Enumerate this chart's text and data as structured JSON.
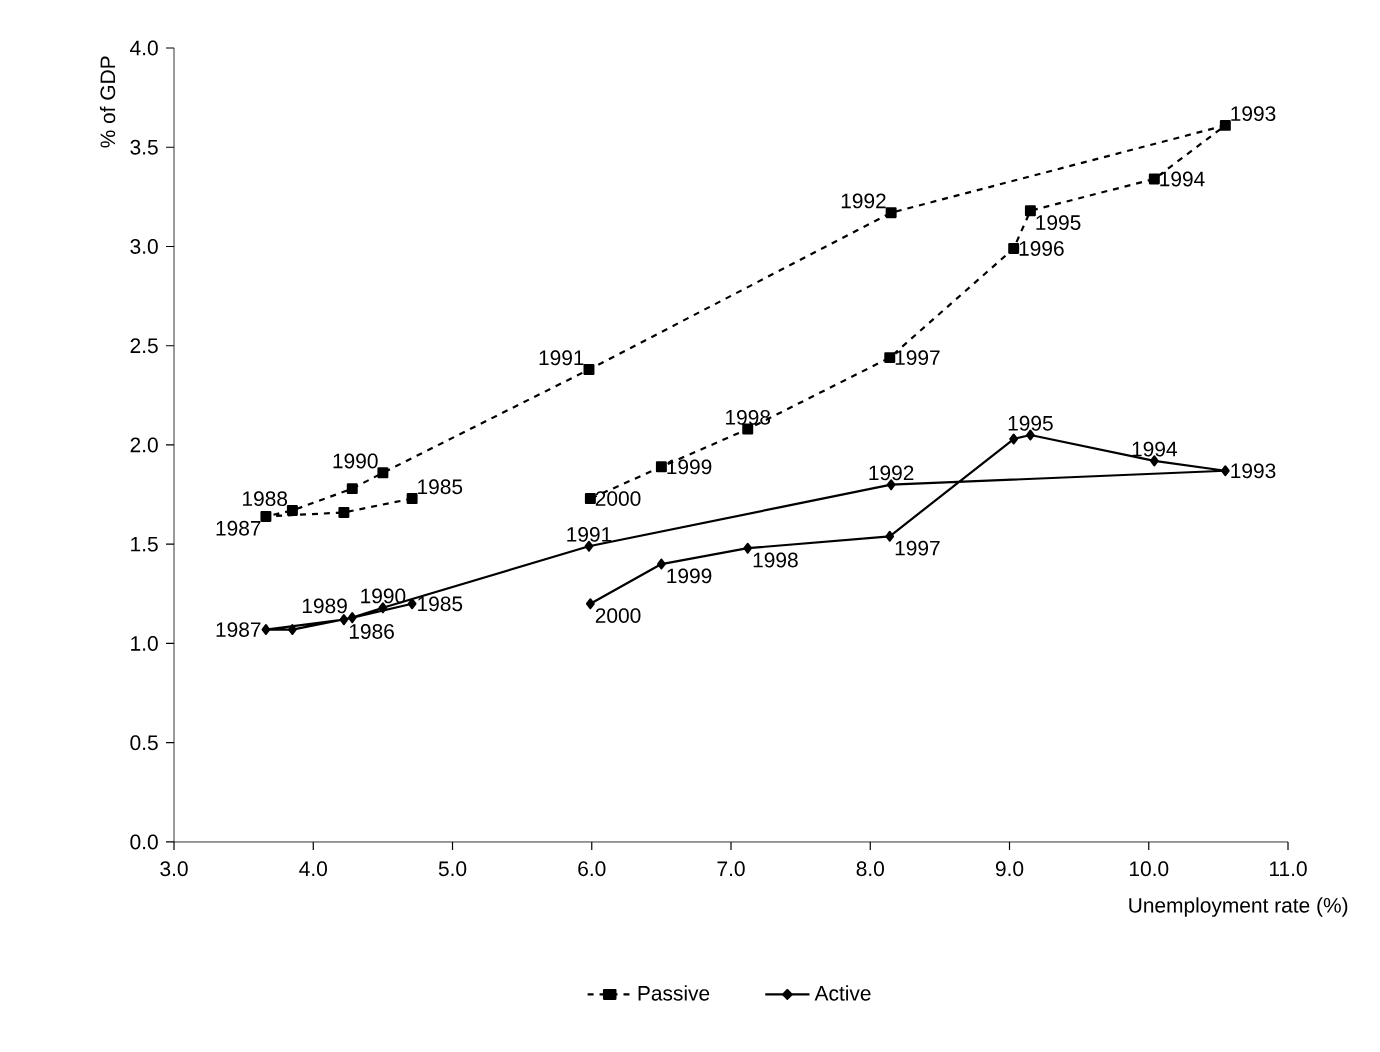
{
  "chart_data": {
    "type": "line",
    "xlabel": "Unemployment rate (%)",
    "ylabel": "% of GDP",
    "x": [
      4.71,
      4.22,
      3.66,
      3.85,
      4.28,
      4.5,
      5.98,
      8.15,
      10.55,
      10.04,
      9.15,
      9.03,
      8.14,
      7.12,
      6.5,
      5.99
    ],
    "series": [
      {
        "name": "Passive",
        "color": "#000000",
        "marker": "square",
        "line_style": "dashed",
        "values": [
          1.73,
          1.66,
          1.64,
          1.67,
          1.78,
          1.86,
          2.38,
          3.17,
          3.61,
          3.34,
          3.18,
          2.99,
          2.44,
          2.08,
          1.89,
          1.73
        ]
      },
      {
        "name": "Active",
        "color": "#000000",
        "marker": "diamond",
        "line_style": "solid",
        "values": [
          1.2,
          1.12,
          1.07,
          1.07,
          1.13,
          1.18,
          1.49,
          1.8,
          1.87,
          1.92,
          2.05,
          2.03,
          1.54,
          1.48,
          1.4,
          1.2
        ]
      }
    ],
    "xlim": [
      3,
      11
    ],
    "xticks": [
      {
        "value": 3,
        "label": "3.0"
      },
      {
        "value": 4,
        "label": "4.0"
      },
      {
        "value": 5,
        "label": "5.0"
      },
      {
        "value": 6,
        "label": "6.0"
      },
      {
        "value": 7,
        "label": "7.0"
      },
      {
        "value": 8,
        "label": "8.0"
      },
      {
        "value": 9,
        "label": "9.0"
      },
      {
        "value": 10,
        "label": "10.0"
      },
      {
        "value": 11,
        "label": "11.0"
      }
    ],
    "ylim": [
      0,
      4
    ],
    "yticks": [
      {
        "value": 0,
        "label": "0.0"
      },
      {
        "value": 0.5,
        "label": "0.5"
      },
      {
        "value": 1,
        "label": "1.0"
      },
      {
        "value": 1.5,
        "label": "1.5"
      },
      {
        "value": 2,
        "label": "2.0"
      },
      {
        "value": 2.5,
        "label": "2.5"
      },
      {
        "value": 3,
        "label": "3.0"
      },
      {
        "value": 3.5,
        "label": "3.5"
      },
      {
        "value": 4,
        "label": "4.0"
      }
    ],
    "grid": false,
    "legend": "bottom",
    "annotations": [
      {
        "text": "1985",
        "x": 4.71,
        "y": 1.73
      },
      {
        "text": "1987",
        "x": 3.66,
        "y": 1.64
      },
      {
        "text": "1988",
        "x": 3.85,
        "y": 1.67
      },
      {
        "text": "1990",
        "x": 4.5,
        "y": 1.86
      },
      {
        "text": "1991",
        "x": 5.98,
        "y": 2.38
      },
      {
        "text": "1992",
        "x": 8.15,
        "y": 3.17
      },
      {
        "text": "1993",
        "x": 10.55,
        "y": 3.61
      },
      {
        "text": "1994",
        "x": 10.04,
        "y": 3.34
      },
      {
        "text": "1995",
        "x": 9.15,
        "y": 3.18
      },
      {
        "text": "1996",
        "x": 9.03,
        "y": 2.99
      },
      {
        "text": "1997",
        "x": 8.14,
        "y": 2.44
      },
      {
        "text": "1998",
        "x": 7.12,
        "y": 2.08
      },
      {
        "text": "1999",
        "x": 6.5,
        "y": 1.89
      },
      {
        "text": "2000",
        "x": 5.99,
        "y": 1.73
      },
      {
        "text": "1985",
        "x": 4.71,
        "y": 1.2
      },
      {
        "text": "1986",
        "x": 4.22,
        "y": 1.12
      },
      {
        "text": "1987",
        "x": 3.66,
        "y": 1.07
      },
      {
        "text": "1989",
        "x": 4.28,
        "y": 1.13
      },
      {
        "text": "1990",
        "x": 4.5,
        "y": 1.18
      },
      {
        "text": "1991",
        "x": 5.98,
        "y": 1.49
      },
      {
        "text": "1992",
        "x": 8.15,
        "y": 1.8
      },
      {
        "text": "1993",
        "x": 10.55,
        "y": 1.87
      },
      {
        "text": "1994",
        "x": 10.04,
        "y": 1.92
      },
      {
        "text": "1995",
        "x": 9.15,
        "y": 2.05
      },
      {
        "text": "1997",
        "x": 8.14,
        "y": 1.54
      },
      {
        "text": "1998",
        "x": 7.12,
        "y": 1.48
      },
      {
        "text": "1999",
        "x": 6.5,
        "y": 1.4
      },
      {
        "text": "2000",
        "x": 5.99,
        "y": 1.2
      }
    ]
  }
}
